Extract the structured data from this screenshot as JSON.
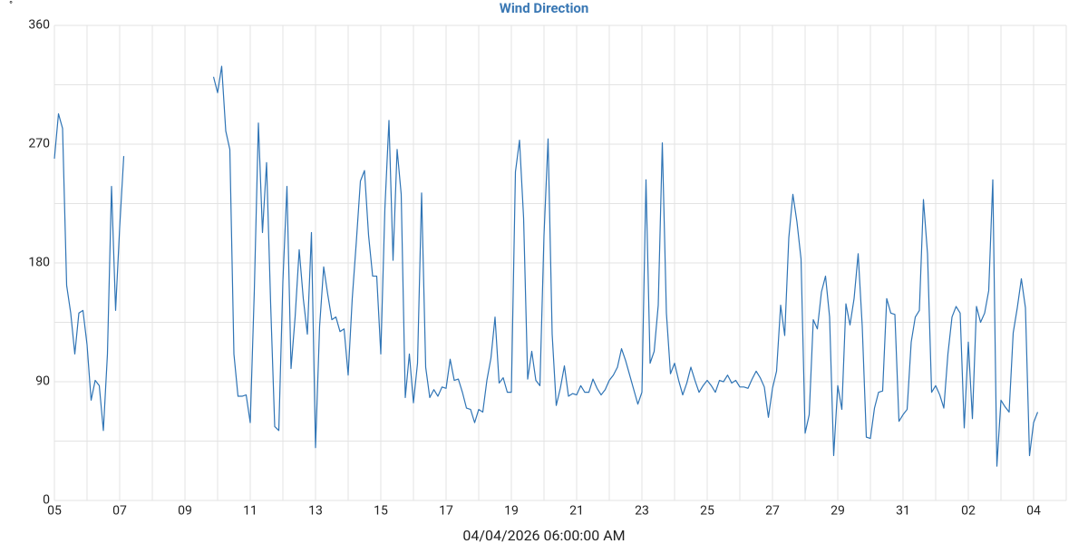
{
  "chart_data": {
    "type": "line",
    "title": "Wind Direction",
    "y_unit": "°",
    "x_label": "04/04/2026 06:00:00 AM",
    "color": "#2f74b5",
    "grid": true,
    "xlim": [
      0,
      31
    ],
    "xticks": [
      {
        "value": 0,
        "label": "05"
      },
      {
        "value": 2,
        "label": "07"
      },
      {
        "value": 4,
        "label": "09"
      },
      {
        "value": 6,
        "label": "11"
      },
      {
        "value": 8,
        "label": "13"
      },
      {
        "value": 10,
        "label": "15"
      },
      {
        "value": 12,
        "label": "17"
      },
      {
        "value": 14,
        "label": "19"
      },
      {
        "value": 16,
        "label": "21"
      },
      {
        "value": 18,
        "label": "23"
      },
      {
        "value": 20,
        "label": "25"
      },
      {
        "value": 22,
        "label": "27"
      },
      {
        "value": 24,
        "label": "29"
      },
      {
        "value": 26,
        "label": "31"
      },
      {
        "value": 28,
        "label": "02"
      },
      {
        "value": 30,
        "label": "04"
      }
    ],
    "x_minor_grid": [
      1,
      3,
      5,
      7,
      9,
      11,
      13,
      15,
      17,
      19,
      21,
      23,
      25,
      27,
      29,
      31
    ],
    "ylim": [
      0,
      360
    ],
    "yticks": [
      0,
      90,
      180,
      270,
      360
    ],
    "y_minor_grid": [
      45,
      135,
      225,
      315
    ],
    "x": [
      0,
      0.125,
      0.25,
      0.375,
      0.5,
      0.625,
      0.75,
      0.875,
      1,
      1.125,
      1.25,
      1.375,
      1.5,
      1.625,
      1.75,
      1.875,
      2,
      2.125,
      3.5,
      4.875,
      5,
      5.125,
      5.25,
      5.375,
      5.5,
      5.625,
      5.75,
      5.875,
      6,
      6.125,
      6.25,
      6.375,
      6.5,
      6.625,
      6.75,
      6.875,
      7,
      7.125,
      7.25,
      7.375,
      7.5,
      7.625,
      7.75,
      7.875,
      8,
      8.125,
      8.25,
      8.375,
      8.5,
      8.625,
      8.75,
      8.875,
      9,
      9.125,
      9.25,
      9.375,
      9.5,
      9.625,
      9.75,
      9.875,
      10,
      10.125,
      10.25,
      10.375,
      10.5,
      10.625,
      10.75,
      10.875,
      11,
      11.125,
      11.25,
      11.375,
      11.5,
      11.625,
      11.75,
      11.875,
      12,
      12.125,
      12.25,
      12.375,
      12.5,
      12.625,
      12.75,
      12.875,
      13,
      13.125,
      13.25,
      13.375,
      13.5,
      13.625,
      13.75,
      13.875,
      14,
      14.125,
      14.25,
      14.375,
      14.5,
      14.625,
      14.75,
      14.875,
      15,
      15.125,
      15.25,
      15.375,
      15.5,
      15.625,
      15.75,
      15.875,
      16,
      16.125,
      16.25,
      16.375,
      16.5,
      16.625,
      16.75,
      16.875,
      17,
      17.125,
      17.25,
      17.375,
      17.5,
      17.625,
      17.75,
      17.875,
      18,
      18.125,
      18.25,
      18.375,
      18.5,
      18.625,
      18.75,
      18.875,
      19,
      19.125,
      19.25,
      19.375,
      19.5,
      19.625,
      19.75,
      19.875,
      20,
      20.125,
      20.25,
      20.375,
      20.5,
      20.625,
      20.75,
      20.875,
      21,
      21.125,
      21.25,
      21.375,
      21.5,
      21.625,
      21.75,
      21.875,
      22,
      22.125,
      22.25,
      22.375,
      22.5,
      22.625,
      22.75,
      22.875,
      23,
      23.125,
      23.25,
      23.375,
      23.5,
      23.625,
      23.75,
      23.875,
      24,
      24.125,
      24.25,
      24.375,
      24.5,
      24.625,
      24.75,
      24.875,
      25,
      25.125,
      25.25,
      25.375,
      25.5,
      25.625,
      25.75,
      25.875,
      26,
      26.125,
      26.25,
      26.375,
      26.5,
      26.625,
      26.75,
      26.875,
      27,
      27.125,
      27.25,
      27.375,
      27.5,
      27.625,
      27.75,
      27.875,
      28,
      28.125,
      28.25,
      28.375,
      28.5,
      28.625,
      28.75,
      28.875,
      29,
      29.125,
      29.25,
      29.375,
      29.5,
      29.625,
      29.75,
      29.875,
      30,
      30.125
    ],
    "values": [
      259,
      293,
      282,
      163,
      142,
      111,
      142,
      144,
      118,
      76,
      91,
      87,
      53,
      111,
      238,
      144,
      207,
      261,
      null,
      321,
      309,
      329,
      280,
      266,
      111,
      79,
      79,
      80,
      59,
      159,
      286,
      203,
      256,
      149,
      56,
      53,
      166,
      238,
      100,
      139,
      190,
      153,
      126,
      203,
      40,
      132,
      177,
      156,
      137,
      139,
      128,
      130,
      95,
      153,
      196,
      242,
      250,
      201,
      170,
      170,
      111,
      221,
      288,
      182,
      266,
      232,
      78,
      111,
      74,
      104,
      233,
      101,
      78,
      84,
      79,
      86,
      85,
      107,
      91,
      92,
      82,
      70,
      69,
      59,
      69,
      67,
      91,
      108,
      139,
      89,
      93,
      82,
      82,
      249,
      273,
      214,
      92,
      113,
      91,
      87,
      201,
      274,
      126,
      72,
      85,
      102,
      79,
      81,
      80,
      87,
      82,
      82,
      92,
      85,
      80,
      84,
      91,
      95,
      101,
      115,
      106,
      95,
      84,
      73,
      82,
      243,
      104,
      113,
      148,
      271,
      142,
      96,
      104,
      91,
      80,
      89,
      101,
      91,
      82,
      87,
      91,
      87,
      82,
      91,
      90,
      95,
      89,
      91,
      86,
      86,
      85,
      92,
      98,
      93,
      86,
      63,
      85,
      98,
      148,
      125,
      199,
      232,
      211,
      183,
      51,
      65,
      137,
      130,
      158,
      170,
      139,
      34,
      87,
      69,
      149,
      133,
      153,
      187,
      132,
      48,
      47,
      70,
      82,
      83,
      153,
      142,
      141,
      60,
      65,
      69,
      120,
      139,
      144,
      228,
      187,
      82,
      87,
      80,
      70,
      111,
      139,
      147,
      142,
      55,
      120,
      62,
      147,
      135,
      142,
      159,
      243,
      26,
      76,
      71,
      67,
      127,
      146,
      168,
      146,
      34,
      59,
      67
    ]
  }
}
